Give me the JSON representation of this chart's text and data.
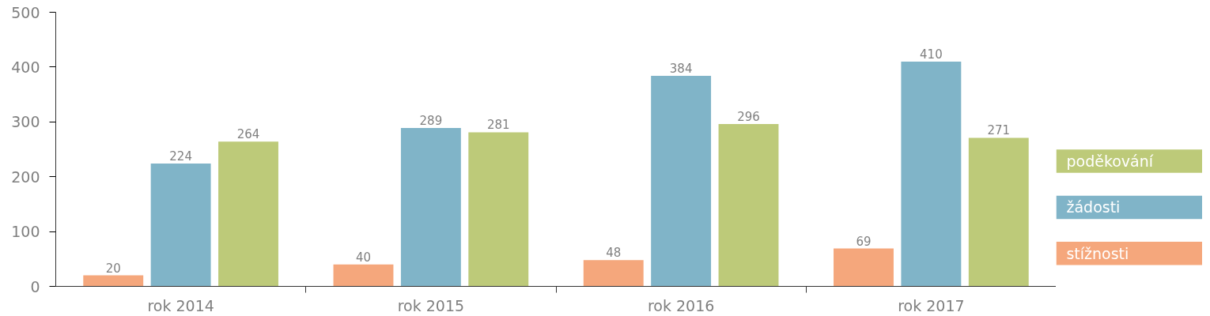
{
  "chart_data": {
    "type": "bar",
    "categories": [
      "rok 2014",
      "rok 2015",
      "rok 2016",
      "rok 2017"
    ],
    "series": [
      {
        "name": "stížnosti",
        "color": "#f5a77c",
        "values": [
          20,
          40,
          48,
          69
        ]
      },
      {
        "name": "žádosti",
        "color": "#80b4c8",
        "values": [
          224,
          289,
          384,
          410
        ]
      },
      {
        "name": "poděkování",
        "color": "#bdca79",
        "values": [
          264,
          281,
          296,
          271
        ]
      }
    ],
    "ylim": [
      0,
      500
    ],
    "yticks": [
      0,
      100,
      200,
      300,
      400,
      500
    ],
    "data_labels": true,
    "grid": false,
    "legend": "right"
  }
}
